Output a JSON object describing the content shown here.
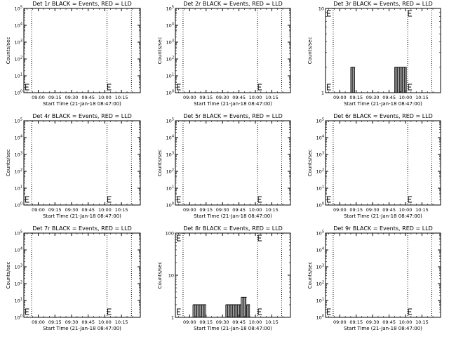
{
  "chart_data": [
    {
      "type": "line",
      "title": "Det 1r BLACK = Events, RED = LLD",
      "xlabel": "Start Time (21-Jan-18 08:47:00)",
      "ylabel": "Counts/sec",
      "x_ticks": [
        "09:00",
        "09:15",
        "09:30",
        "09:45",
        "10:00",
        "10:15"
      ],
      "ylim": [
        1,
        100000
      ],
      "y_scale": "log",
      "y_ticks": [
        "10^0",
        "10^1",
        "10^2",
        "10^3",
        "10^4",
        "10^5"
      ],
      "dotted_x": [
        "08:54",
        "10:02",
        "10:24"
      ],
      "markers": [
        "08:48",
        "10:02"
      ],
      "series": [
        {
          "values": []
        }
      ]
    },
    {
      "type": "line",
      "title": "Det 2r BLACK = Events, RED = LLD",
      "xlabel": "Start Time (21-Jan-18 08:47:00)",
      "ylabel": "Counts/sec",
      "x_ticks": [
        "09:00",
        "09:15",
        "09:30",
        "09:45",
        "10:00",
        "10:15"
      ],
      "ylim": [
        1,
        100000
      ],
      "y_scale": "log",
      "y_ticks": [
        "10^0",
        "10^1",
        "10^2",
        "10^3",
        "10^4",
        "10^5"
      ],
      "dotted_x": [
        "08:54",
        "10:02",
        "10:24"
      ],
      "markers": [
        "08:48",
        "10:02"
      ],
      "series": [
        {
          "values": []
        }
      ]
    },
    {
      "type": "line",
      "title": "Det 3r BLACK = Events, RED = LLD",
      "xlabel": "Start Time (21-Jan-18 08:47:00)",
      "ylabel": "Counts/sec",
      "x_ticks": [
        "09:00",
        "09:15",
        "09:30",
        "09:45",
        "10:00",
        "10:15"
      ],
      "ylim": [
        1,
        10
      ],
      "y_scale": "log",
      "y_ticks": [
        "1",
        "10"
      ],
      "dotted_x": [
        "08:54",
        "10:02",
        "10:24"
      ],
      "markers": [
        "08:48",
        "10:02"
      ],
      "series": [
        {
          "values": [
            {
              "start": "09:10",
              "end": "09:14",
              "low": 1,
              "high": 2
            },
            {
              "start": "09:50",
              "end": "10:01",
              "low": 1,
              "high": 2
            }
          ]
        }
      ]
    },
    {
      "type": "line",
      "title": "Det 4r BLACK = Events, RED = LLD",
      "xlabel": "Start Time (21-Jan-18 08:47:00)",
      "ylabel": "Counts/sec",
      "x_ticks": [
        "09:00",
        "09:15",
        "09:30",
        "09:45",
        "10:00",
        "10:15"
      ],
      "ylim": [
        1,
        100000
      ],
      "y_scale": "log",
      "y_ticks": [
        "10^0",
        "10^1",
        "10^2",
        "10^3",
        "10^4",
        "10^5"
      ],
      "dotted_x": [
        "08:54",
        "10:02",
        "10:24"
      ],
      "markers": [
        "08:48",
        "10:02"
      ],
      "series": [
        {
          "values": []
        }
      ]
    },
    {
      "type": "line",
      "title": "Det 5r BLACK = Events, RED = LLD",
      "xlabel": "Start Time (21-Jan-18 08:47:00)",
      "ylabel": "Counts/sec",
      "x_ticks": [
        "09:00",
        "09:15",
        "09:30",
        "09:45",
        "10:00",
        "10:15"
      ],
      "ylim": [
        1,
        100000
      ],
      "y_scale": "log",
      "y_ticks": [
        "10^0",
        "10^1",
        "10^2",
        "10^3",
        "10^4",
        "10^5"
      ],
      "dotted_x": [
        "08:54",
        "10:02",
        "10:24"
      ],
      "markers": [
        "08:48",
        "10:02"
      ],
      "series": [
        {
          "values": []
        }
      ]
    },
    {
      "type": "line",
      "title": "Det 6r BLACK = Events, RED = LLD",
      "xlabel": "Start Time (21-Jan-18 08:47:00)",
      "ylabel": "Counts/sec",
      "x_ticks": [
        "09:00",
        "09:15",
        "09:30",
        "09:45",
        "10:00",
        "10:15"
      ],
      "ylim": [
        1,
        100000
      ],
      "y_scale": "log",
      "y_ticks": [
        "10^0",
        "10^1",
        "10^2",
        "10^3",
        "10^4",
        "10^5"
      ],
      "dotted_x": [
        "08:54",
        "10:02",
        "10:24"
      ],
      "markers": [
        "08:48",
        "10:02"
      ],
      "series": [
        {
          "values": []
        }
      ]
    },
    {
      "type": "line",
      "title": "Det 7r BLACK = Events, RED = LLD",
      "xlabel": "Start Time (21-Jan-18 08:47:00)",
      "ylabel": "Counts/sec",
      "x_ticks": [
        "09:00",
        "09:15",
        "09:30",
        "09:45",
        "10:00",
        "10:15"
      ],
      "ylim": [
        1,
        100000
      ],
      "y_scale": "log",
      "y_ticks": [
        "10^0",
        "10^1",
        "10^2",
        "10^3",
        "10^4",
        "10^5"
      ],
      "dotted_x": [
        "08:54",
        "10:02",
        "10:24"
      ],
      "markers": [
        "08:48",
        "10:02"
      ],
      "series": [
        {
          "values": []
        }
      ]
    },
    {
      "type": "line",
      "title": "Det 8r BLACK = Events, RED = LLD",
      "xlabel": "Start Time (21-Jan-18 08:47:00)",
      "ylabel": "Counts/sec",
      "x_ticks": [
        "09:00",
        "09:15",
        "09:30",
        "09:45",
        "10:00",
        "10:15"
      ],
      "ylim": [
        1,
        100
      ],
      "y_scale": "log",
      "y_ticks": [
        "1",
        "10",
        "100"
      ],
      "dotted_x": [
        "08:54",
        "10:02",
        "10:24"
      ],
      "markers": [
        "08:48",
        "10:02"
      ],
      "series": [
        {
          "values": [
            {
              "start": "09:03",
              "end": "09:15",
              "low": 1,
              "high": 2
            },
            {
              "start": "09:33",
              "end": "09:47",
              "low": 1,
              "high": 2
            },
            {
              "start": "09:47",
              "end": "09:52",
              "low": 1,
              "high": 3
            },
            {
              "start": "09:52",
              "end": "09:55",
              "low": 1,
              "high": 2
            }
          ]
        }
      ]
    },
    {
      "type": "line",
      "title": "Det 9r BLACK = Events, RED = LLD",
      "xlabel": "Start Time (21-Jan-18 08:47:00)",
      "ylabel": "Counts/sec",
      "x_ticks": [
        "09:00",
        "09:15",
        "09:30",
        "09:45",
        "10:00",
        "10:15"
      ],
      "ylim": [
        1,
        100000
      ],
      "y_scale": "log",
      "y_ticks": [
        "10^0",
        "10^1",
        "10^2",
        "10^3",
        "10^4",
        "10^5"
      ],
      "dotted_x": [
        "08:54",
        "10:02",
        "10:24"
      ],
      "markers": [
        "08:48",
        "10:02"
      ],
      "series": [
        {
          "values": []
        }
      ]
    }
  ]
}
